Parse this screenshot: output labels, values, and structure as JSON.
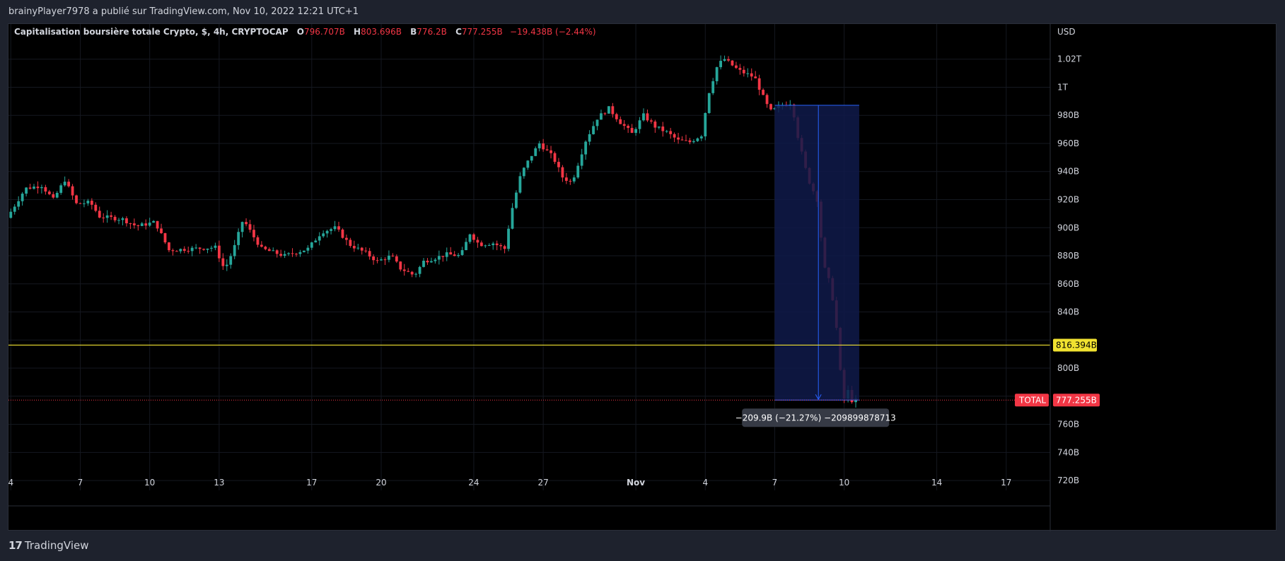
{
  "header": {
    "attribution": "brainyPlayer7978 a publié sur TradingView.com, Nov 10, 2022 12:21 UTC+1"
  },
  "legend": {
    "title": "Capitalisation boursière totale Crypto, $, 4h, CRYPTOCAP",
    "o_label": "O",
    "o_value": "796.707B",
    "h_label": "H",
    "h_value": "803.696B",
    "b_label": "B",
    "b_value": "776.2B",
    "c_label": "C",
    "c_value": "777.255B",
    "change": "−19.438B (−2.44%)"
  },
  "footer": {
    "brand": "TradingView",
    "logo_text": "17"
  },
  "colors": {
    "up": "#26a69a",
    "down": "#f23645",
    "line": "#f0e130",
    "range_fill": "#0f1a4a",
    "range_stroke": "#2962ff",
    "text": "#d1d4dc",
    "grid": "#151820"
  },
  "chart_data": {
    "type": "candlestick",
    "symbol": "CRYPTOCAP:TOTAL",
    "interval": "4h",
    "currency_label": "USD",
    "y_unit": "B",
    "ylim": [
      713,
      1045
    ],
    "y_ticks": [
      720,
      740,
      760,
      780,
      800,
      820,
      840,
      860,
      880,
      900,
      920,
      940,
      960,
      980,
      1000,
      1020
    ],
    "y_tick_labels": [
      "720B",
      "740B",
      "760B",
      "780B",
      "800B",
      "820B",
      "840B",
      "860B",
      "880B",
      "900B",
      "920B",
      "940B",
      "960B",
      "980B",
      "1T",
      "1.02T"
    ],
    "x_ticks": [
      {
        "day": 4,
        "label": "4"
      },
      {
        "day": 7,
        "label": "7"
      },
      {
        "day": 10,
        "label": "10"
      },
      {
        "day": 13,
        "label": "13"
      },
      {
        "day": 17,
        "label": "17"
      },
      {
        "day": 20,
        "label": "20"
      },
      {
        "day": 24,
        "label": "24"
      },
      {
        "day": 27,
        "label": "27"
      },
      {
        "day": 31,
        "label": "Nov"
      },
      {
        "day": 34,
        "label": "4"
      },
      {
        "day": 37,
        "label": "7"
      },
      {
        "day": 40,
        "label": "10"
      },
      {
        "day": 44,
        "label": "14"
      },
      {
        "day": 47,
        "label": "17"
      }
    ],
    "key_points": [
      {
        "day": 4.0,
        "value": 907
      },
      {
        "day": 4.8,
        "value": 928
      },
      {
        "day": 5.5,
        "value": 930
      },
      {
        "day": 6.0,
        "value": 920
      },
      {
        "day": 6.5,
        "value": 934
      },
      {
        "day": 7.0,
        "value": 917
      },
      {
        "day": 7.6,
        "value": 918
      },
      {
        "day": 8.0,
        "value": 908
      },
      {
        "day": 9.0,
        "value": 906
      },
      {
        "day": 9.6,
        "value": 901
      },
      {
        "day": 10.4,
        "value": 904
      },
      {
        "day": 11.0,
        "value": 884
      },
      {
        "day": 12.0,
        "value": 885
      },
      {
        "day": 13.0,
        "value": 886
      },
      {
        "day": 13.4,
        "value": 870
      },
      {
        "day": 13.8,
        "value": 885
      },
      {
        "day": 14.2,
        "value": 906
      },
      {
        "day": 14.6,
        "value": 895
      },
      {
        "day": 15.0,
        "value": 885
      },
      {
        "day": 16.0,
        "value": 880
      },
      {
        "day": 17.0,
        "value": 885
      },
      {
        "day": 17.6,
        "value": 897
      },
      {
        "day": 18.2,
        "value": 900
      },
      {
        "day": 18.8,
        "value": 888
      },
      {
        "day": 19.5,
        "value": 882
      },
      {
        "day": 20.0,
        "value": 876
      },
      {
        "day": 20.6,
        "value": 880
      },
      {
        "day": 21.0,
        "value": 871
      },
      {
        "day": 21.6,
        "value": 866
      },
      {
        "day": 22.0,
        "value": 876
      },
      {
        "day": 23.0,
        "value": 881
      },
      {
        "day": 23.6,
        "value": 880
      },
      {
        "day": 24.0,
        "value": 896
      },
      {
        "day": 24.4,
        "value": 888
      },
      {
        "day": 25.0,
        "value": 889
      },
      {
        "day": 25.5,
        "value": 885
      },
      {
        "day": 25.8,
        "value": 912
      },
      {
        "day": 26.2,
        "value": 938
      },
      {
        "day": 26.6,
        "value": 950
      },
      {
        "day": 27.0,
        "value": 960
      },
      {
        "day": 27.6,
        "value": 950
      },
      {
        "day": 28.0,
        "value": 936
      },
      {
        "day": 28.4,
        "value": 932
      },
      {
        "day": 29.0,
        "value": 962
      },
      {
        "day": 29.5,
        "value": 978
      },
      {
        "day": 30.0,
        "value": 985
      },
      {
        "day": 30.5,
        "value": 975
      },
      {
        "day": 31.0,
        "value": 967
      },
      {
        "day": 31.5,
        "value": 980
      },
      {
        "day": 32.0,
        "value": 972
      },
      {
        "day": 32.5,
        "value": 968
      },
      {
        "day": 33.0,
        "value": 962
      },
      {
        "day": 33.5,
        "value": 961
      },
      {
        "day": 34.0,
        "value": 966
      },
      {
        "day": 34.3,
        "value": 995
      },
      {
        "day": 34.7,
        "value": 1016
      },
      {
        "day": 35.0,
        "value": 1020
      },
      {
        "day": 35.6,
        "value": 1012
      },
      {
        "day": 36.3,
        "value": 1007
      },
      {
        "day": 36.8,
        "value": 988
      },
      {
        "day": 37.0,
        "value": 983
      },
      {
        "day": 37.5,
        "value": 987
      },
      {
        "day": 37.9,
        "value": 989
      },
      {
        "day": 38.2,
        "value": 962
      },
      {
        "day": 38.6,
        "value": 935
      },
      {
        "day": 39.0,
        "value": 920
      },
      {
        "day": 39.3,
        "value": 872
      },
      {
        "day": 39.6,
        "value": 858
      },
      {
        "day": 39.9,
        "value": 820
      },
      {
        "day": 40.1,
        "value": 775
      },
      {
        "day": 40.3,
        "value": 785
      },
      {
        "day": 40.5,
        "value": 777
      }
    ],
    "horizontal_line": {
      "value": 816.394,
      "label": "816.394B",
      "color": "#f0e130"
    },
    "last_price": {
      "value": 777.255,
      "label": "777.255B",
      "symbol_label": "TOTAL"
    },
    "measure": {
      "start_day": 37.0,
      "end_day": 40.1,
      "top": 987.155,
      "bottom": 777.255,
      "label": "−209.9B (−21.27%) −209899878713"
    }
  }
}
